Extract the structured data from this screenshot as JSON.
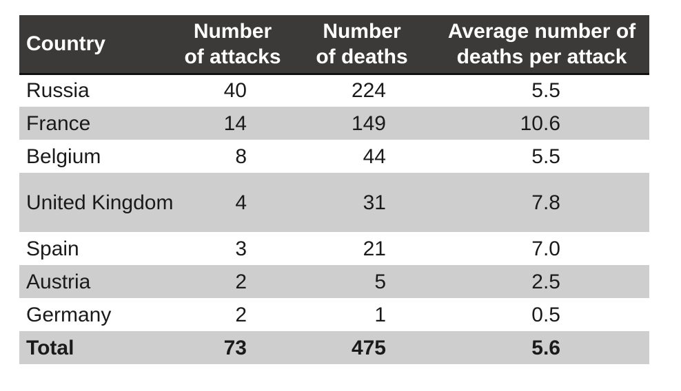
{
  "table": {
    "columns": [
      {
        "line1": "Country",
        "line2": ""
      },
      {
        "line1": "Number",
        "line2": "of attacks"
      },
      {
        "line1": "Number",
        "line2": "of deaths"
      },
      {
        "line1": "Average number of",
        "line2": "deaths per attack"
      }
    ],
    "rows": [
      {
        "country": "Russia",
        "attacks": "40",
        "deaths": "224",
        "avg": "5.5"
      },
      {
        "country": "France",
        "attacks": "14",
        "deaths": "149",
        "avg": "10.6"
      },
      {
        "country": "Belgium",
        "attacks": "8",
        "deaths": "44",
        "avg": "5.5"
      },
      {
        "country": "United Kingdom",
        "attacks": "4",
        "deaths": "31",
        "avg": "7.8"
      },
      {
        "country": "Spain",
        "attacks": "3",
        "deaths": "21",
        "avg": "7.0"
      },
      {
        "country": "Austria",
        "attacks": "2",
        "deaths": "5",
        "avg": "2.5"
      },
      {
        "country": "Germany",
        "attacks": "2",
        "deaths": "1",
        "avg": "0.5"
      },
      {
        "country": "Total",
        "attacks": "73",
        "deaths": "475",
        "avg": "5.6"
      }
    ]
  },
  "colors": {
    "header_background": "#3b3a38",
    "header_text": "#ffffff",
    "shaded_row": "#cecece",
    "body_text": "#1a1a1a",
    "header_divider": "#111111",
    "page_background": "#ffffff"
  },
  "chart_data": {
    "type": "table",
    "title": "",
    "columns": [
      "Country",
      "Number of attacks",
      "Number of deaths",
      "Average number of deaths per attack"
    ],
    "rows": [
      [
        "Russia",
        40,
        224,
        5.5
      ],
      [
        "France",
        14,
        149,
        10.6
      ],
      [
        "Belgium",
        8,
        44,
        5.5
      ],
      [
        "United Kingdom",
        4,
        31,
        7.8
      ],
      [
        "Spain",
        3,
        21,
        7.0
      ],
      [
        "Austria",
        2,
        5,
        2.5
      ],
      [
        "Germany",
        2,
        1,
        0.5
      ],
      [
        "Total",
        73,
        475,
        5.6
      ]
    ],
    "layout": {
      "zebra_striping": true,
      "first_body_row_unshaded": true,
      "numeric_alignment": "right",
      "total_row_bold": true
    }
  }
}
